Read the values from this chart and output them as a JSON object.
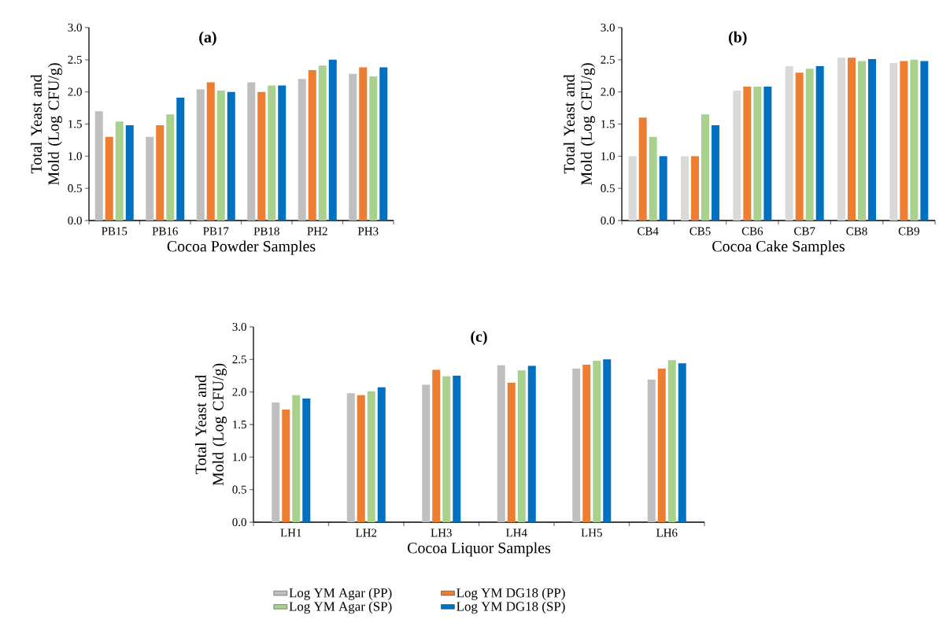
{
  "chart_data": [
    {
      "type": "bar",
      "title": "(a)",
      "xlabel": "Cocoa Powder Samples",
      "ylabel": "Total Yeast and Mold (Log CFU/g)",
      "categories": [
        "PB15",
        "PB16",
        "PB17",
        "PB18",
        "PH2",
        "PH3"
      ],
      "series": [
        {
          "color": "#bfbfbf",
          "values": [
            1.7,
            1.3,
            2.04,
            2.15,
            2.2,
            2.28
          ]
        },
        {
          "color": "#ed7d31",
          "values": [
            1.3,
            1.48,
            2.15,
            2.0,
            2.34,
            2.38
          ]
        },
        {
          "color": "#a9d18e",
          "values": [
            1.54,
            1.65,
            2.02,
            2.1,
            2.41,
            2.24
          ]
        },
        {
          "color": "#0070c0",
          "values": [
            1.48,
            1.91,
            2.0,
            2.1,
            2.5,
            2.38
          ]
        }
      ],
      "ylim": [
        0,
        3
      ],
      "yticks": [
        {
          "value": 0,
          "label": "0.0"
        },
        0.5,
        {
          "value": 1,
          "label": "1.0"
        },
        1.5,
        {
          "value": 2,
          "label": "2.0"
        },
        2.5,
        {
          "value": 3,
          "label": "3.0"
        }
      ],
      "grid": false,
      "legend": false
    },
    {
      "type": "bar",
      "title": "(b)",
      "xlabel": "Cocoa Cake Samples",
      "ylabel": "Total Yeast and Mold (Log CFU/g)",
      "categories": [
        "CB4",
        "CB5",
        "CB6",
        "CB7",
        "CB8",
        "CB9"
      ],
      "series": [
        {
          "color": "#d9d9d9",
          "values": [
            1.0,
            1.0,
            2.02,
            2.4,
            2.53,
            2.45
          ]
        },
        {
          "color": "#ed7d31",
          "values": [
            1.6,
            1.0,
            2.08,
            2.3,
            2.53,
            2.48
          ]
        },
        {
          "color": "#a9d18e",
          "values": [
            1.3,
            1.65,
            2.08,
            2.36,
            2.48,
            2.5
          ]
        },
        {
          "color": "#0070c0",
          "values": [
            1.0,
            1.48,
            2.08,
            2.4,
            2.51,
            2.48
          ]
        }
      ],
      "ylim": [
        0,
        3
      ],
      "yticks": [
        {
          "value": 0,
          "label": "0.0"
        },
        0.5,
        {
          "value": 1,
          "label": "1.0"
        },
        1.5,
        {
          "value": 2,
          "label": "2.0"
        },
        2.5,
        {
          "value": 3,
          "label": "3.0"
        }
      ],
      "grid": false,
      "legend": false
    },
    {
      "type": "bar",
      "title": "(c)",
      "xlabel": "Cocoa Liquor Samples",
      "ylabel": "Total Yeast and Mold (Log CFU/g)",
      "categories": [
        "LH1",
        "LH2",
        "LH3",
        "LH4",
        "LH5",
        "LH6"
      ],
      "series": [
        {
          "name": "Log YM Agar (PP)",
          "color": "#bfbfbf",
          "values": [
            1.84,
            1.98,
            2.11,
            2.41,
            2.36,
            2.19
          ]
        },
        {
          "name": "Log YM DG18 (PP)",
          "color": "#ed7d31",
          "values": [
            1.73,
            1.95,
            2.34,
            2.14,
            2.42,
            2.36
          ]
        },
        {
          "name": "Log YM Agar (SP)",
          "color": "#a9d18e",
          "values": [
            1.95,
            2.01,
            2.24,
            2.33,
            2.48,
            2.49
          ]
        },
        {
          "name": "Log YM DG18 (SP)",
          "color": "#0070c0",
          "values": [
            1.9,
            2.07,
            2.25,
            2.4,
            2.5,
            2.44
          ]
        }
      ],
      "ylim": [
        0,
        3
      ],
      "yticks": [
        {
          "value": 0,
          "label": "0.0"
        },
        0.5,
        {
          "value": 1,
          "label": "1.0"
        },
        1.5,
        {
          "value": 2,
          "label": "2.0"
        },
        2.5,
        {
          "value": 3,
          "label": "3.0"
        }
      ],
      "grid": false,
      "legend": "bottom"
    }
  ]
}
